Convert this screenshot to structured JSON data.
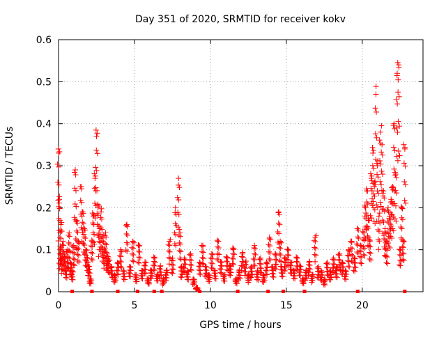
{
  "chart_data": {
    "type": "scatter",
    "title": "Day 351 of 2020, SRMTID for receiver kokv",
    "xlabel": "GPS time / hours",
    "ylabel": "SRMTID / TECUs",
    "xlim": [
      0,
      24
    ],
    "ylim": [
      0,
      0.6
    ],
    "x_ticks": [
      "0",
      "5",
      "10",
      "15",
      "20"
    ],
    "y_ticks": [
      "0",
      "0.1",
      "0.2",
      "0.3",
      "0.4",
      "0.5",
      "0.6"
    ],
    "grid": true,
    "marker": "+",
    "color": "#ff0000",
    "series": [
      {
        "name": "SRMTID",
        "x": [
          0.0,
          0.05,
          0.1,
          0.15,
          0.2,
          0.3,
          0.4,
          0.5,
          0.6,
          0.7,
          0.8,
          0.9,
          1.0,
          1.1,
          1.2,
          1.3,
          1.5,
          1.6,
          1.7,
          1.8,
          1.9,
          2.0,
          2.1,
          2.2,
          2.3,
          2.4,
          2.5,
          2.6,
          2.7,
          2.8,
          2.9,
          3.0,
          3.1,
          3.2,
          3.3,
          3.5,
          3.7,
          3.9,
          4.1,
          4.3,
          4.5,
          4.7,
          4.9,
          5.1,
          5.3,
          5.5,
          5.7,
          5.9,
          6.1,
          6.3,
          6.5,
          6.7,
          6.9,
          7.1,
          7.3,
          7.5,
          7.7,
          7.9,
          8.0,
          8.1,
          8.3,
          8.5,
          8.7,
          8.9,
          9.1,
          9.3,
          9.5,
          9.7,
          9.9,
          10.1,
          10.3,
          10.5,
          10.7,
          10.9,
          11.1,
          11.3,
          11.5,
          11.7,
          11.9,
          12.1,
          12.3,
          12.5,
          12.7,
          12.9,
          13.1,
          13.3,
          13.5,
          13.7,
          13.9,
          14.1,
          14.3,
          14.5,
          14.6,
          14.7,
          14.9,
          15.1,
          15.3,
          15.5,
          15.7,
          15.9,
          16.1,
          16.3,
          16.5,
          16.7,
          16.9,
          17.1,
          17.3,
          17.5,
          17.7,
          17.9,
          18.1,
          18.3,
          18.5,
          18.7,
          18.9,
          19.1,
          19.3,
          19.5,
          19.7,
          19.9,
          20.1,
          20.2,
          20.3,
          20.4,
          20.5,
          20.6,
          20.7,
          20.8,
          20.9,
          21.0,
          21.1,
          21.2,
          21.3,
          21.4,
          21.5,
          21.6,
          21.7,
          21.8,
          21.9,
          22.0,
          22.1,
          22.2,
          22.3,
          22.4,
          22.5,
          22.6,
          22.7,
          22.8
        ],
        "values": [
          0.33,
          0.22,
          0.1,
          0.16,
          0.08,
          0.12,
          0.09,
          0.06,
          0.1,
          0.14,
          0.07,
          0.05,
          0.11,
          0.29,
          0.17,
          0.12,
          0.25,
          0.19,
          0.15,
          0.1,
          0.08,
          0.06,
          0.03,
          0.12,
          0.18,
          0.27,
          0.37,
          0.2,
          0.15,
          0.19,
          0.13,
          0.1,
          0.14,
          0.09,
          0.08,
          0.06,
          0.04,
          0.07,
          0.1,
          0.05,
          0.16,
          0.06,
          0.12,
          0.04,
          0.11,
          0.05,
          0.07,
          0.03,
          0.05,
          0.08,
          0.04,
          0.06,
          0.03,
          0.05,
          0.12,
          0.08,
          0.2,
          0.27,
          0.14,
          0.06,
          0.08,
          0.05,
          0.09,
          0.03,
          0.01,
          0.07,
          0.11,
          0.06,
          0.04,
          0.09,
          0.05,
          0.12,
          0.07,
          0.04,
          0.08,
          0.06,
          0.1,
          0.03,
          0.05,
          0.09,
          0.07,
          0.04,
          0.06,
          0.11,
          0.05,
          0.08,
          0.04,
          0.07,
          0.13,
          0.06,
          0.09,
          0.19,
          0.12,
          0.06,
          0.08,
          0.1,
          0.07,
          0.05,
          0.08,
          0.06,
          0.03,
          0.05,
          0.07,
          0.04,
          0.13,
          0.06,
          0.05,
          0.03,
          0.07,
          0.05,
          0.08,
          0.06,
          0.09,
          0.07,
          0.05,
          0.1,
          0.12,
          0.08,
          0.15,
          0.11,
          0.14,
          0.2,
          0.24,
          0.17,
          0.12,
          0.27,
          0.33,
          0.25,
          0.47,
          0.3,
          0.18,
          0.38,
          0.35,
          0.24,
          0.15,
          0.12,
          0.2,
          0.18,
          0.22,
          0.25,
          0.4,
          0.28,
          0.52,
          0.54,
          0.1,
          0.2,
          0.12,
          0.34
        ],
        "marker_legend_row_values": [
          0,
          0,
          0,
          0,
          0,
          0,
          0,
          0,
          0,
          0,
          0,
          0,
          0,
          0
        ]
      }
    ]
  }
}
